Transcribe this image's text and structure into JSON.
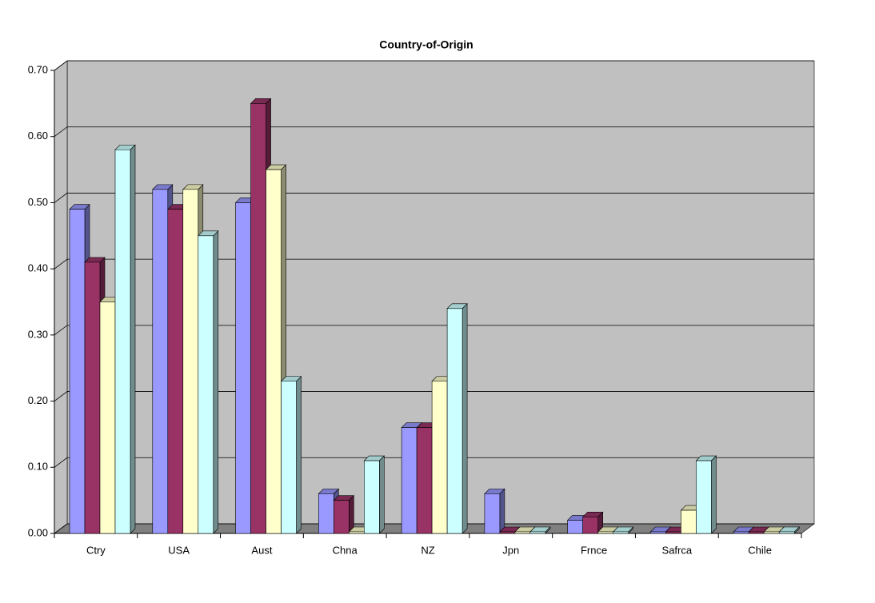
{
  "chart_data": {
    "type": "bar",
    "title": "Country-of-Origin",
    "categories": [
      "Ctry",
      "USA",
      "Aust",
      "Chna",
      "NZ",
      "Jpn",
      "Frnce",
      "Safrca",
      "Chile"
    ],
    "series": [
      {
        "color": "#9999ff",
        "values": [
          0.49,
          0.52,
          0.5,
          0.06,
          0.16,
          0.06,
          0.02,
          0,
          0
        ]
      },
      {
        "color": "#993366",
        "values": [
          0.41,
          0.49,
          0.65,
          0.05,
          0.16,
          0,
          0.025,
          0,
          0
        ]
      },
      {
        "color": "#ffffcc",
        "values": [
          0.35,
          0.52,
          0.55,
          0,
          0.23,
          0,
          0,
          0.035,
          0
        ]
      },
      {
        "color": "#ccffff",
        "values": [
          0.58,
          0.45,
          0.23,
          0.11,
          0.34,
          0,
          0,
          0.11,
          0
        ]
      }
    ],
    "ylim": [
      0,
      0.7
    ],
    "yticks": [
      {
        "value": 0,
        "label": "0.00"
      },
      {
        "value": 0.1,
        "label": "0.10"
      },
      {
        "value": 0.2,
        "label": "0.20"
      },
      {
        "value": 0.3,
        "label": "0.30"
      },
      {
        "value": 0.4,
        "label": "0.40"
      },
      {
        "value": 0.5,
        "label": "0.50"
      },
      {
        "value": 0.6,
        "label": "0.60"
      },
      {
        "value": 0.7,
        "label": "0.70"
      }
    ],
    "grid": true
  }
}
